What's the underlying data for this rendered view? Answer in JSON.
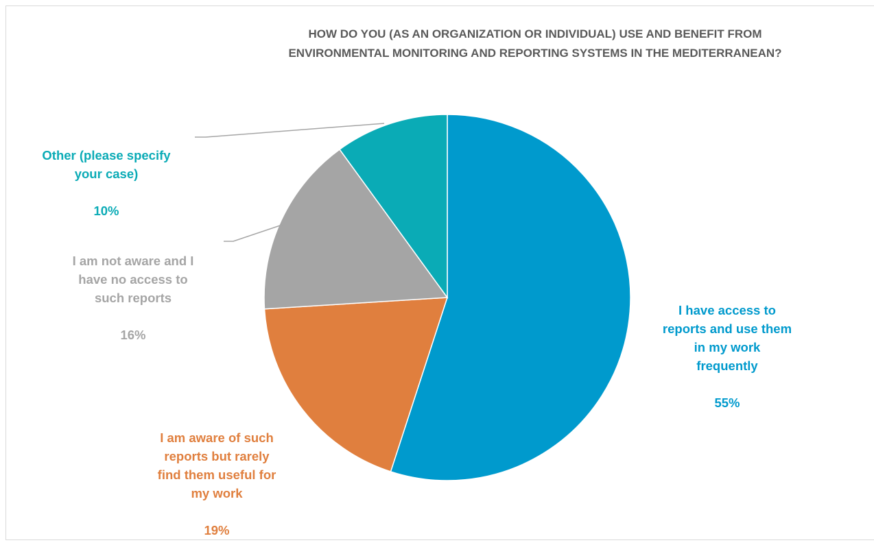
{
  "chart_data": {
    "type": "pie",
    "title_lines": [
      "HOW DO YOU (AS AN ORGANIZATION OR INDIVIDUAL) USE AND BENEFIT FROM",
      "ENVIRONMENTAL MONITORING AND REPORTING SYSTEMS IN THE MEDITERRANEAN?"
    ],
    "slices": [
      {
        "label": "I have access to\nreports and use them\nin my work\nfrequently",
        "value": 55,
        "value_label": "55%",
        "color": "#009ACD"
      },
      {
        "label": "I am aware of such\nreports but rarely\nfind them useful for\nmy work",
        "value": 19,
        "value_label": "19%",
        "color": "#E07F3E"
      },
      {
        "label": "I am not aware and I\nhave no access to\nsuch reports",
        "value": 16,
        "value_label": "16%",
        "color": "#A5A5A5"
      },
      {
        "label": "Other (please specify\nyour case)",
        "value": 10,
        "value_label": "10%",
        "color": "#0AABB6"
      }
    ],
    "start_angle_deg": 0,
    "direction": "clockwise"
  }
}
